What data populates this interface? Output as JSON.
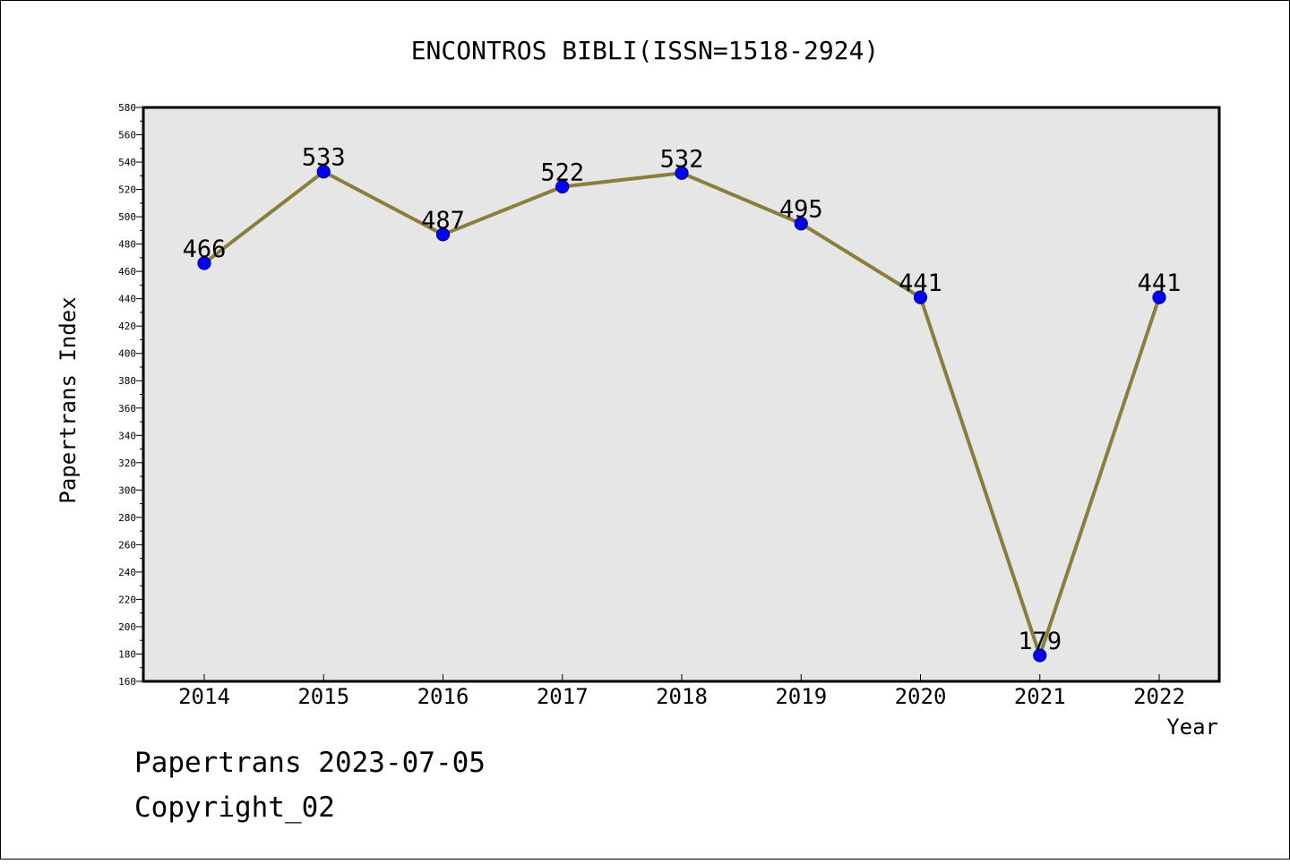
{
  "chart_data": {
    "type": "line",
    "title": "ENCONTROS BIBLI(ISSN=1518-2924)",
    "xlabel": "Year",
    "ylabel": "Papertrans Index",
    "categories": [
      "2014",
      "2015",
      "2016",
      "2017",
      "2018",
      "2019",
      "2020",
      "2021",
      "2022"
    ],
    "series": [
      {
        "values": [
          466,
          533,
          487,
          522,
          532,
          495,
          441,
          179,
          441
        ]
      }
    ],
    "ylim": [
      160,
      580
    ],
    "yticks": [
      160,
      180,
      200,
      220,
      240,
      260,
      280,
      300,
      320,
      340,
      360,
      380,
      400,
      420,
      440,
      460,
      480,
      500,
      520,
      540,
      560,
      580
    ],
    "grid": false,
    "legend": "none",
    "colors": {
      "line": "#8b7d3a",
      "marker": "#0000ff",
      "marker_edge": "#000080",
      "plot_background": "#e6e6e6"
    }
  },
  "footer": {
    "line1": "Papertrans 2023-07-05",
    "line2": "Copyright_02"
  }
}
